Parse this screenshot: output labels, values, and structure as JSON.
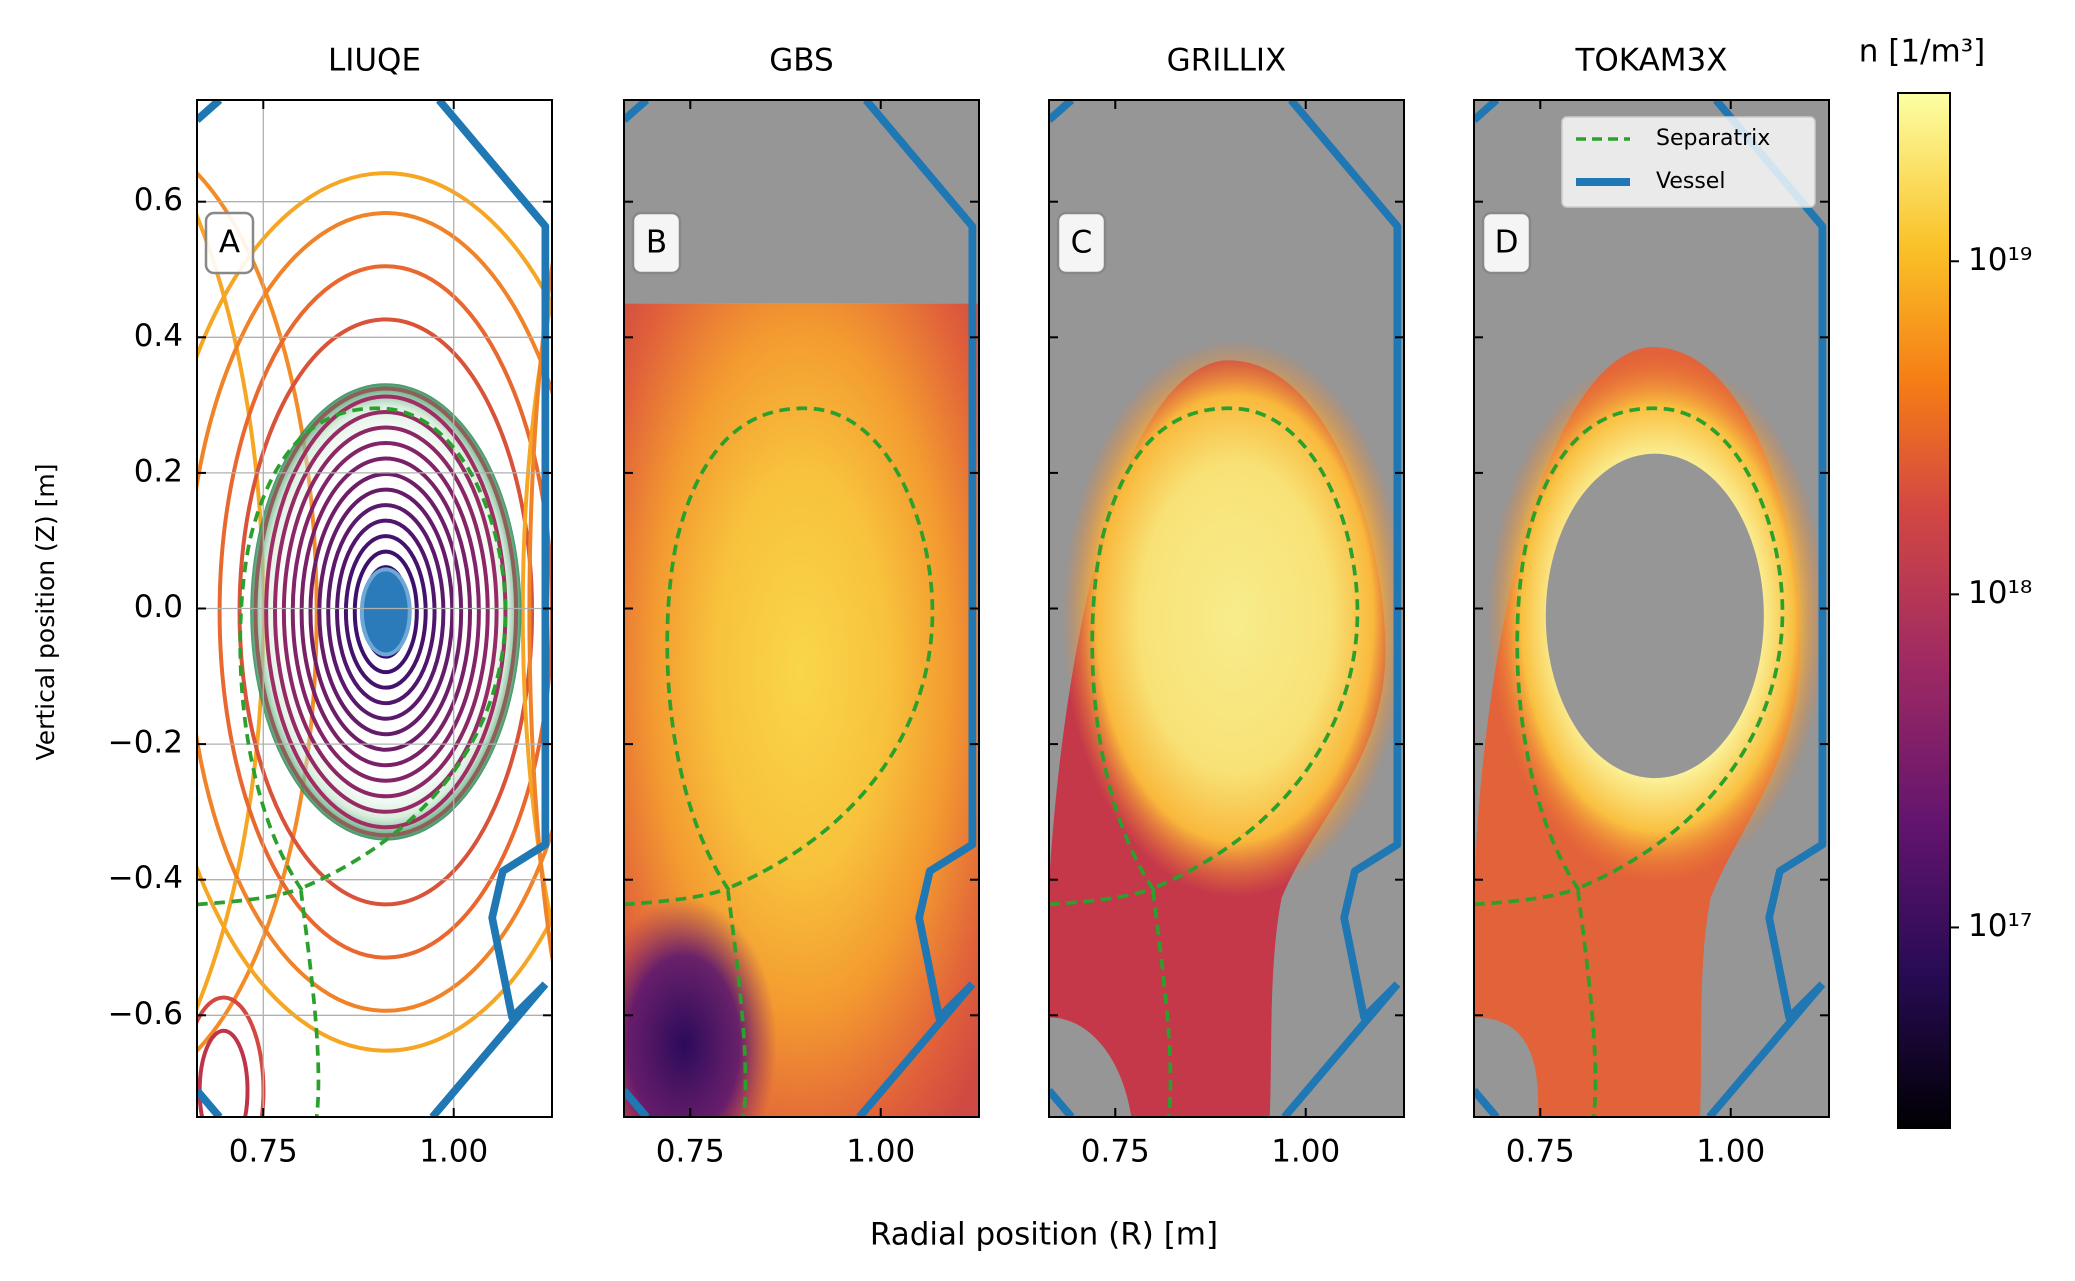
{
  "figure": {
    "xlabel": "Radial position (R) [m]",
    "ylabel": "Vertical position (Z) [m]"
  },
  "chart_data": [
    {
      "type": "contour",
      "title": "LIUQE",
      "panel_label": "A",
      "grid": true,
      "xlim": [
        0.663,
        1.129
      ],
      "ylim": [
        -0.75,
        0.75
      ],
      "xticks": [
        0.75,
        {
          "value": 1.0,
          "label": "1.00"
        }
      ],
      "yticks": [
        {
          "value": -0.6,
          "label": "−0.6"
        },
        {
          "value": -0.4,
          "label": "−0.4"
        },
        {
          "value": -0.2,
          "label": "−0.2"
        },
        {
          "value": 0,
          "label": "0.0"
        },
        0.2,
        0.4,
        0.6
      ]
    },
    {
      "type": "heatmap",
      "title": "GBS",
      "panel_label": "B",
      "xlim": [
        0.663,
        1.129
      ],
      "ylim": [
        -0.75,
        0.75
      ],
      "xticks": [
        0.75,
        {
          "value": 1.0,
          "label": "1.00"
        }
      ]
    },
    {
      "type": "heatmap",
      "title": "GRILLIX",
      "panel_label": "C",
      "xlim": [
        0.663,
        1.129
      ],
      "ylim": [
        -0.75,
        0.75
      ],
      "xticks": [
        0.75,
        {
          "value": 1.0,
          "label": "1.00"
        }
      ]
    },
    {
      "type": "heatmap",
      "title": "TOKAM3X",
      "panel_label": "D",
      "xlim": [
        0.663,
        1.129
      ],
      "ylim": [
        -0.75,
        0.75
      ],
      "xticks": [
        0.75,
        {
          "value": 1.0,
          "label": "1.00"
        }
      ],
      "legend": "upper right",
      "series": [
        {
          "name": "Separatrix",
          "color": "#2ca02c"
        },
        {
          "name": "Vessel",
          "color": "#1f77b4"
        }
      ]
    },
    {
      "type": "colorbar",
      "label": "n [1/m³]",
      "log": true,
      "colormap": "inferno",
      "clim": [
        2.5e+16,
        3.2e+19
      ],
      "ticks": [
        {
          "value": 1e+17,
          "label": "10¹⁷"
        },
        {
          "value": 1e+18,
          "label": "10¹⁸"
        },
        {
          "value": 1e+19,
          "label": "10¹⁹"
        }
      ]
    }
  ]
}
